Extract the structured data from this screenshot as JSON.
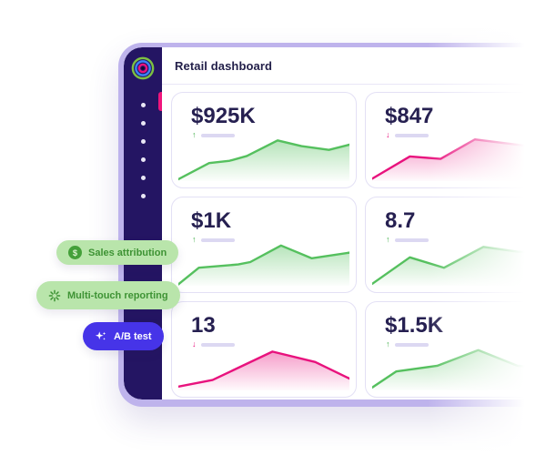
{
  "header": {
    "title": "Retail dashboard"
  },
  "sidebar": {
    "nav_dots": 6,
    "logo": "concentric-rings-logo",
    "active_indicator_color": "#f0157c"
  },
  "colors": {
    "frame": "#beb3ec",
    "sidebar_bg": "#241563",
    "card_border": "#e3e0f5",
    "value_text": "#262051",
    "green_line": "#55c05e",
    "pink_line": "#e8127d",
    "placeholder_bar": "#dcd8f2",
    "pill_green_bg": "#b9e5ab",
    "pill_green_text": "#3e9334",
    "pill_indigo_bg": "#4634e8",
    "pill_indigo_text": "#ffffff"
  },
  "cards": [
    {
      "value": "$925K",
      "trend": "up",
      "spark": {
        "type": "area",
        "color": "green",
        "x": [
          0,
          18,
          30,
          40,
          58,
          72,
          88,
          100
        ],
        "y": [
          96,
          62,
          57,
          47,
          14,
          26,
          34,
          23
        ]
      }
    },
    {
      "value": "$847",
      "trend": "down",
      "spark": {
        "type": "area",
        "color": "pink",
        "x": [
          0,
          22,
          40,
          60,
          100
        ],
        "y": [
          95,
          48,
          53,
          12,
          30
        ]
      }
    },
    {
      "value": "$1K",
      "trend": "up",
      "spark": {
        "type": "area",
        "color": "green",
        "x": [
          0,
          12,
          35,
          42,
          60,
          78,
          100
        ],
        "y": [
          97,
          62,
          55,
          50,
          15,
          42,
          30
        ]
      }
    },
    {
      "value": "8.7",
      "trend": "up",
      "spark": {
        "type": "area",
        "color": "green",
        "x": [
          0,
          22,
          42,
          65,
          85,
          100
        ],
        "y": [
          96,
          40,
          62,
          18,
          28,
          30
        ]
      }
    },
    {
      "value": "13",
      "trend": "down",
      "spark": {
        "type": "area",
        "color": "pink",
        "x": [
          0,
          20,
          55,
          80,
          100
        ],
        "y": [
          92,
          78,
          18,
          40,
          75
        ]
      }
    },
    {
      "value": "$1.5K",
      "trend": "up",
      "spark": {
        "type": "area",
        "color": "green",
        "x": [
          0,
          14,
          38,
          62,
          85,
          100
        ],
        "y": [
          94,
          60,
          48,
          15,
          48,
          52
        ]
      }
    }
  ],
  "pills": [
    {
      "label": "Sales attribution",
      "icon": "dollar-circle-icon"
    },
    {
      "label": "Multi-touch reporting",
      "icon": "burst-icon"
    },
    {
      "label": "A/B test",
      "icon": "sparkles-icon"
    }
  ]
}
